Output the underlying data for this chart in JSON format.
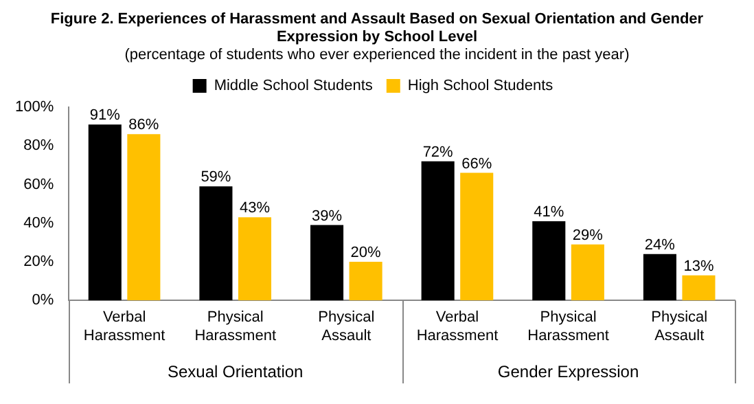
{
  "chart_data": {
    "type": "bar",
    "title": "Figure 2. Experiences of Harassment and Assault Based on Sexual Orientation and Gender Expression by School Level",
    "subtitle": "(percentage of students who ever experienced the incident in the past year)",
    "categories": [
      "Verbal Harassment",
      "Physical Harassment",
      "Physical Assault",
      "Verbal Harassment",
      "Physical Harassment",
      "Physical Assault"
    ],
    "series": [
      {
        "name": "Middle School Students",
        "color": "#000000",
        "values": [
          91,
          59,
          39,
          72,
          41,
          24
        ],
        "value_labels": [
          "91%",
          "59%",
          "39%",
          "72%",
          "41%",
          "24%"
        ]
      },
      {
        "name": "High School Students",
        "color": "#ffc000",
        "values": [
          86,
          43,
          20,
          66,
          29,
          13
        ],
        "value_labels": [
          "86%",
          "43%",
          "20%",
          "66%",
          "29%",
          "13%"
        ]
      }
    ],
    "annotations": [
      "Sexual Orientation",
      "Gender Expression"
    ],
    "ylim": [
      0,
      100
    ],
    "yticks": [
      {
        "value": 0,
        "label": "0%"
      },
      {
        "value": 20,
        "label": "20%"
      },
      {
        "value": 40,
        "label": "40%"
      },
      {
        "value": 60,
        "label": "60%"
      },
      {
        "value": 80,
        "label": "80%"
      },
      {
        "value": 100,
        "label": "100%"
      }
    ],
    "grid": false,
    "legend": "top"
  }
}
